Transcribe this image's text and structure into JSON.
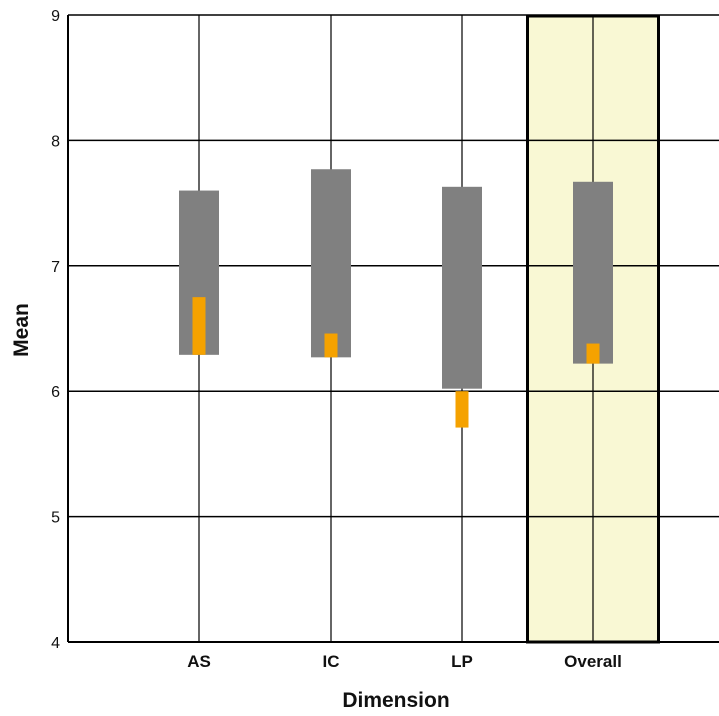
{
  "chart_data": {
    "type": "bar",
    "xlabel": "Dimension",
    "ylabel": "Mean",
    "ylim": [
      4,
      9
    ],
    "yticks": [
      "4",
      "5",
      "6",
      "7",
      "8",
      "9"
    ],
    "categories": [
      "AS",
      "IC",
      "LP",
      "Overall"
    ],
    "highlighted_category": "Overall",
    "grid": true,
    "series": [
      {
        "color": "#808080",
        "low": [
          6.29,
          6.27,
          6.02,
          6.22
        ],
        "high": [
          7.6,
          7.77,
          7.63,
          7.67
        ]
      },
      {
        "color": "#f5a200",
        "low": [
          6.29,
          6.27,
          5.71,
          6.22
        ],
        "high": [
          6.75,
          6.46,
          6.0,
          6.38
        ]
      }
    ],
    "highlight_color": "#f9f8d4"
  }
}
